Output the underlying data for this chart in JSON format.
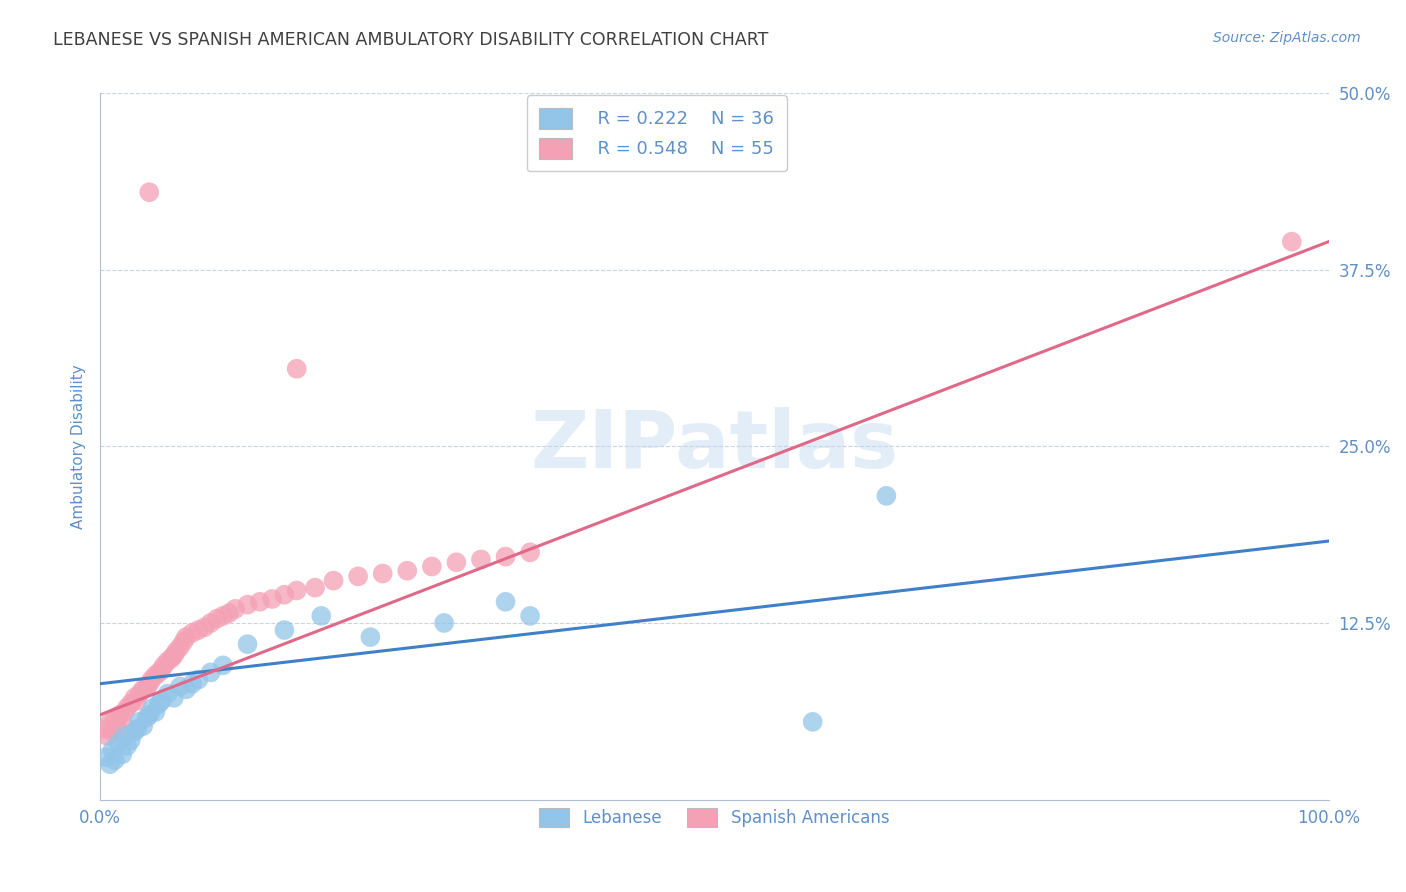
{
  "title": "LEBANESE VS SPANISH AMERICAN AMBULATORY DISABILITY CORRELATION CHART",
  "source": "Source: ZipAtlas.com",
  "ylabel": "Ambulatory Disability",
  "xlim": [
    0,
    1.0
  ],
  "ylim": [
    0,
    0.5
  ],
  "yticks": [
    0.125,
    0.25,
    0.375,
    0.5
  ],
  "ytick_labels": [
    "12.5%",
    "25.0%",
    "37.5%",
    "50.0%"
  ],
  "xtick_labels": [
    "0.0%",
    "100.0%"
  ],
  "legend_blue_r": "R = 0.222",
  "legend_blue_n": "N = 36",
  "legend_pink_r": "R = 0.548",
  "legend_pink_n": "N = 55",
  "blue_color": "#92C5E8",
  "pink_color": "#F4A0B5",
  "blue_line_color": "#4080C8",
  "pink_line_color": "#E06888",
  "watermark": "ZIPatlas",
  "title_color": "#404040",
  "axis_label_color": "#6090C8",
  "tick_color": "#6090C8",
  "grid_color": "#C8D4E0",
  "blue_scatter_x": [
    0.005,
    0.008,
    0.01,
    0.012,
    0.015,
    0.018,
    0.02,
    0.022,
    0.025,
    0.028,
    0.03,
    0.032,
    0.035,
    0.038,
    0.04,
    0.043,
    0.045,
    0.048,
    0.05,
    0.055,
    0.06,
    0.065,
    0.07,
    0.075,
    0.08,
    0.09,
    0.1,
    0.12,
    0.15,
    0.18,
    0.22,
    0.28,
    0.33,
    0.35,
    0.64,
    0.58
  ],
  "blue_scatter_y": [
    0.03,
    0.025,
    0.035,
    0.028,
    0.04,
    0.032,
    0.045,
    0.038,
    0.042,
    0.048,
    0.05,
    0.055,
    0.052,
    0.058,
    0.06,
    0.065,
    0.062,
    0.068,
    0.07,
    0.075,
    0.072,
    0.08,
    0.078,
    0.082,
    0.085,
    0.09,
    0.095,
    0.11,
    0.12,
    0.13,
    0.115,
    0.125,
    0.14,
    0.13,
    0.215,
    0.055
  ],
  "pink_scatter_x": [
    0.004,
    0.006,
    0.008,
    0.01,
    0.012,
    0.014,
    0.016,
    0.018,
    0.02,
    0.022,
    0.025,
    0.028,
    0.03,
    0.032,
    0.035,
    0.038,
    0.04,
    0.042,
    0.045,
    0.048,
    0.05,
    0.052,
    0.055,
    0.058,
    0.06,
    0.062,
    0.065,
    0.068,
    0.07,
    0.075,
    0.08,
    0.085,
    0.09,
    0.095,
    0.1,
    0.105,
    0.11,
    0.12,
    0.13,
    0.14,
    0.15,
    0.16,
    0.175,
    0.19,
    0.21,
    0.23,
    0.25,
    0.27,
    0.29,
    0.31,
    0.33,
    0.35,
    0.97,
    0.04,
    0.16
  ],
  "pink_scatter_y": [
    0.05,
    0.045,
    0.055,
    0.048,
    0.058,
    0.052,
    0.06,
    0.055,
    0.062,
    0.065,
    0.068,
    0.072,
    0.07,
    0.075,
    0.078,
    0.08,
    0.082,
    0.085,
    0.088,
    0.09,
    0.092,
    0.095,
    0.098,
    0.1,
    0.102,
    0.105,
    0.108,
    0.112,
    0.115,
    0.118,
    0.12,
    0.122,
    0.125,
    0.128,
    0.13,
    0.132,
    0.135,
    0.138,
    0.14,
    0.142,
    0.145,
    0.148,
    0.15,
    0.155,
    0.158,
    0.16,
    0.162,
    0.165,
    0.168,
    0.17,
    0.172,
    0.175,
    0.395,
    0.43,
    0.305
  ],
  "blue_line_x0": 0.0,
  "blue_line_y0": 0.082,
  "blue_line_x1": 1.0,
  "blue_line_y1": 0.183,
  "pink_line_x0": 0.0,
  "pink_line_y0": 0.06,
  "pink_line_x1": 1.0,
  "pink_line_y1": 0.395
}
